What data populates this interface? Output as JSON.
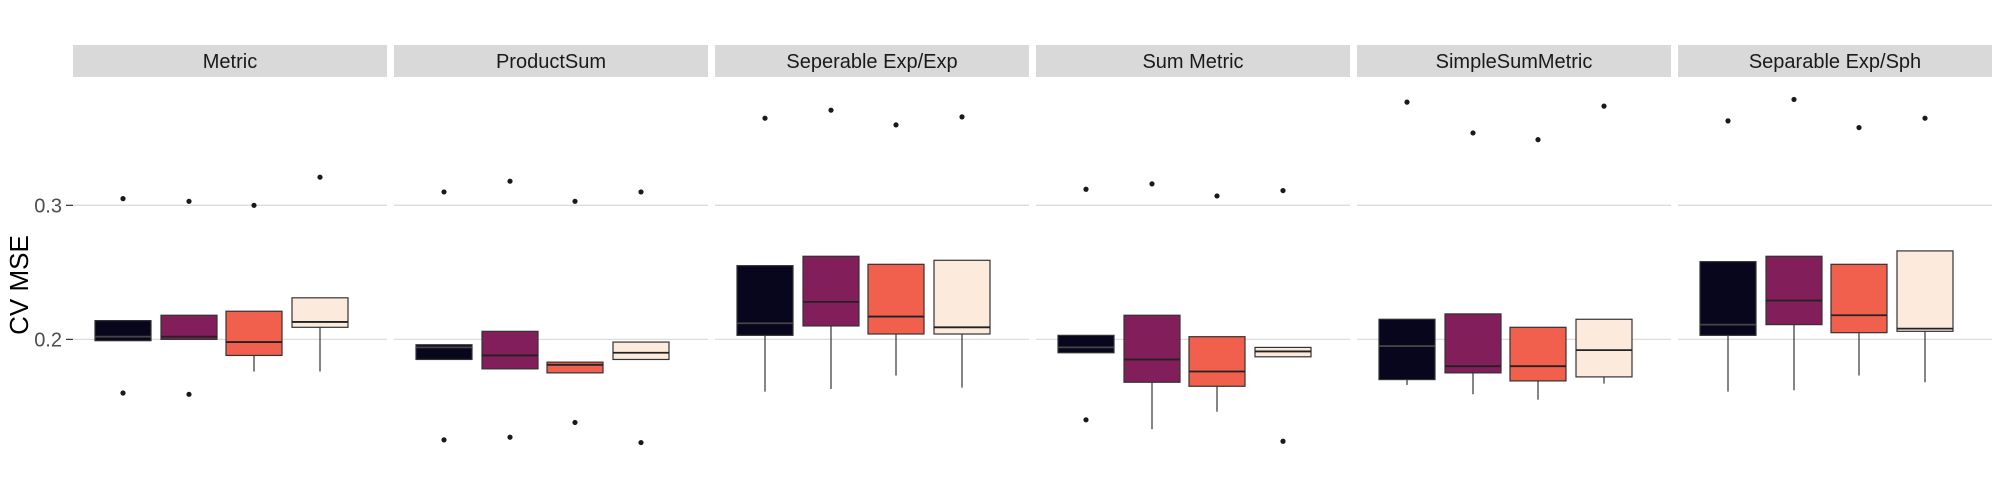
{
  "chart_data": {
    "type": "boxplot",
    "ylabel": "CV MSE",
    "yticks": [
      0.2,
      0.3
    ],
    "ylim": [
      0.11,
      0.395
    ],
    "grid": true,
    "legend": "none",
    "group_colors": [
      "#07061d",
      "#821e5a",
      "#f0604d",
      "#fcebdc"
    ],
    "panels": [
      {
        "title": "Metric",
        "boxes": [
          {
            "q1": 0.199,
            "median": 0.202,
            "q3": 0.214,
            "whisker_low": 0.199,
            "whisker_high": 0.214,
            "outliers": [
              0.305,
              0.16
            ]
          },
          {
            "q1": 0.2,
            "median": 0.202,
            "q3": 0.218,
            "whisker_low": 0.2,
            "whisker_high": 0.218,
            "outliers": [
              0.303,
              0.159
            ]
          },
          {
            "q1": 0.188,
            "median": 0.198,
            "q3": 0.221,
            "whisker_low": 0.176,
            "whisker_high": 0.221,
            "outliers": [
              0.3
            ]
          },
          {
            "q1": 0.209,
            "median": 0.213,
            "q3": 0.231,
            "whisker_low": 0.176,
            "whisker_high": 0.231,
            "outliers": [
              0.321
            ]
          }
        ]
      },
      {
        "title": "ProductSum",
        "boxes": [
          {
            "q1": 0.185,
            "median": 0.194,
            "q3": 0.196,
            "whisker_low": 0.185,
            "whisker_high": 0.196,
            "outliers": [
              0.31,
              0.125
            ]
          },
          {
            "q1": 0.178,
            "median": 0.188,
            "q3": 0.206,
            "whisker_low": 0.178,
            "whisker_high": 0.206,
            "outliers": [
              0.318,
              0.127
            ]
          },
          {
            "q1": 0.175,
            "median": 0.181,
            "q3": 0.183,
            "whisker_low": 0.175,
            "whisker_high": 0.183,
            "outliers": [
              0.303,
              0.138
            ]
          },
          {
            "q1": 0.185,
            "median": 0.19,
            "q3": 0.198,
            "whisker_low": 0.185,
            "whisker_high": 0.198,
            "outliers": [
              0.31,
              0.123
            ]
          }
        ]
      },
      {
        "title": "Seperable Exp/Exp",
        "boxes": [
          {
            "q1": 0.203,
            "median": 0.212,
            "q3": 0.255,
            "whisker_low": 0.161,
            "whisker_high": 0.255,
            "outliers": [
              0.365
            ]
          },
          {
            "q1": 0.21,
            "median": 0.228,
            "q3": 0.262,
            "whisker_low": 0.163,
            "whisker_high": 0.262,
            "outliers": [
              0.371
            ]
          },
          {
            "q1": 0.204,
            "median": 0.217,
            "q3": 0.256,
            "whisker_low": 0.173,
            "whisker_high": 0.256,
            "outliers": [
              0.36
            ]
          },
          {
            "q1": 0.204,
            "median": 0.209,
            "q3": 0.259,
            "whisker_low": 0.164,
            "whisker_high": 0.259,
            "outliers": [
              0.366
            ]
          }
        ]
      },
      {
        "title": "Sum Metric",
        "boxes": [
          {
            "q1": 0.19,
            "median": 0.194,
            "q3": 0.203,
            "whisker_low": 0.19,
            "whisker_high": 0.203,
            "outliers": [
              0.312,
              0.14
            ]
          },
          {
            "q1": 0.168,
            "median": 0.185,
            "q3": 0.218,
            "whisker_low": 0.133,
            "whisker_high": 0.218,
            "outliers": [
              0.316
            ]
          },
          {
            "q1": 0.165,
            "median": 0.176,
            "q3": 0.202,
            "whisker_low": 0.146,
            "whisker_high": 0.202,
            "outliers": [
              0.307
            ]
          },
          {
            "q1": 0.187,
            "median": 0.191,
            "q3": 0.194,
            "whisker_low": 0.187,
            "whisker_high": 0.194,
            "outliers": [
              0.311,
              0.124
            ]
          }
        ]
      },
      {
        "title": "SimpleSumMetric",
        "boxes": [
          {
            "q1": 0.17,
            "median": 0.195,
            "q3": 0.215,
            "whisker_low": 0.166,
            "whisker_high": 0.215,
            "outliers": [
              0.377
            ]
          },
          {
            "q1": 0.175,
            "median": 0.18,
            "q3": 0.219,
            "whisker_low": 0.159,
            "whisker_high": 0.219,
            "outliers": [
              0.354
            ]
          },
          {
            "q1": 0.169,
            "median": 0.18,
            "q3": 0.209,
            "whisker_low": 0.155,
            "whisker_high": 0.209,
            "outliers": [
              0.349
            ]
          },
          {
            "q1": 0.172,
            "median": 0.192,
            "q3": 0.215,
            "whisker_low": 0.167,
            "whisker_high": 0.215,
            "outliers": [
              0.374
            ]
          }
        ]
      },
      {
        "title": "Separable Exp/Sph",
        "boxes": [
          {
            "q1": 0.203,
            "median": 0.211,
            "q3": 0.258,
            "whisker_low": 0.161,
            "whisker_high": 0.258,
            "outliers": [
              0.363
            ]
          },
          {
            "q1": 0.211,
            "median": 0.229,
            "q3": 0.262,
            "whisker_low": 0.162,
            "whisker_high": 0.262,
            "outliers": [
              0.379
            ]
          },
          {
            "q1": 0.205,
            "median": 0.218,
            "q3": 0.256,
            "whisker_low": 0.173,
            "whisker_high": 0.256,
            "outliers": [
              0.358
            ]
          },
          {
            "q1": 0.206,
            "median": 0.208,
            "q3": 0.266,
            "whisker_low": 0.168,
            "whisker_high": 0.266,
            "outliers": [
              0.365
            ]
          }
        ]
      }
    ]
  }
}
